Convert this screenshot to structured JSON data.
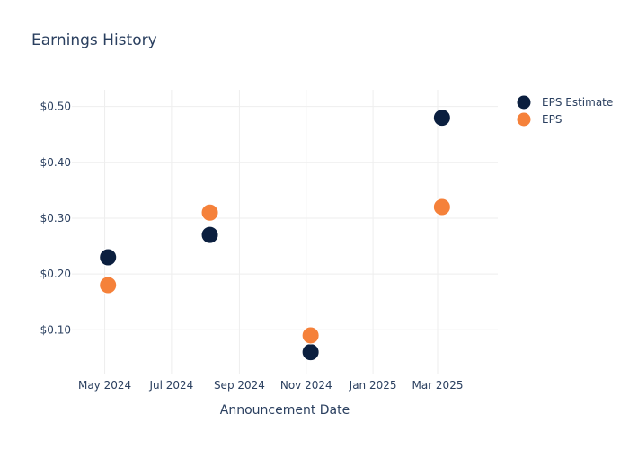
{
  "colors": {
    "estimate": "#0b1f3f",
    "actual": "#f5813a"
  },
  "chart_data": {
    "type": "scatter",
    "title": "Earnings History",
    "xlabel": "Announcement Date",
    "ylabel": "",
    "x_ticks": [
      "May 2024",
      "Jul 2024",
      "Sep 2024",
      "Nov 2024",
      "Jan 2025",
      "Mar 2025"
    ],
    "y_ticks": [
      "$0.10",
      "$0.20",
      "$0.30",
      "$0.40",
      "$0.50"
    ],
    "xlim": [
      "2024-04-01",
      "2025-04-25"
    ],
    "ylim": [
      0.02,
      0.53
    ],
    "grid": true,
    "legend_position": "top-right",
    "series": [
      {
        "name": "EPS Estimate",
        "color_key": "estimate",
        "points": [
          {
            "x": "2024-05-04",
            "y": 0.23
          },
          {
            "x": "2024-08-05",
            "y": 0.27
          },
          {
            "x": "2024-11-05",
            "y": 0.06
          },
          {
            "x": "2025-03-05",
            "y": 0.48
          }
        ]
      },
      {
        "name": "EPS",
        "color_key": "actual",
        "points": [
          {
            "x": "2024-05-04",
            "y": 0.18
          },
          {
            "x": "2024-08-05",
            "y": 0.31
          },
          {
            "x": "2024-11-05",
            "y": 0.09
          },
          {
            "x": "2025-03-05",
            "y": 0.32
          }
        ]
      }
    ]
  }
}
